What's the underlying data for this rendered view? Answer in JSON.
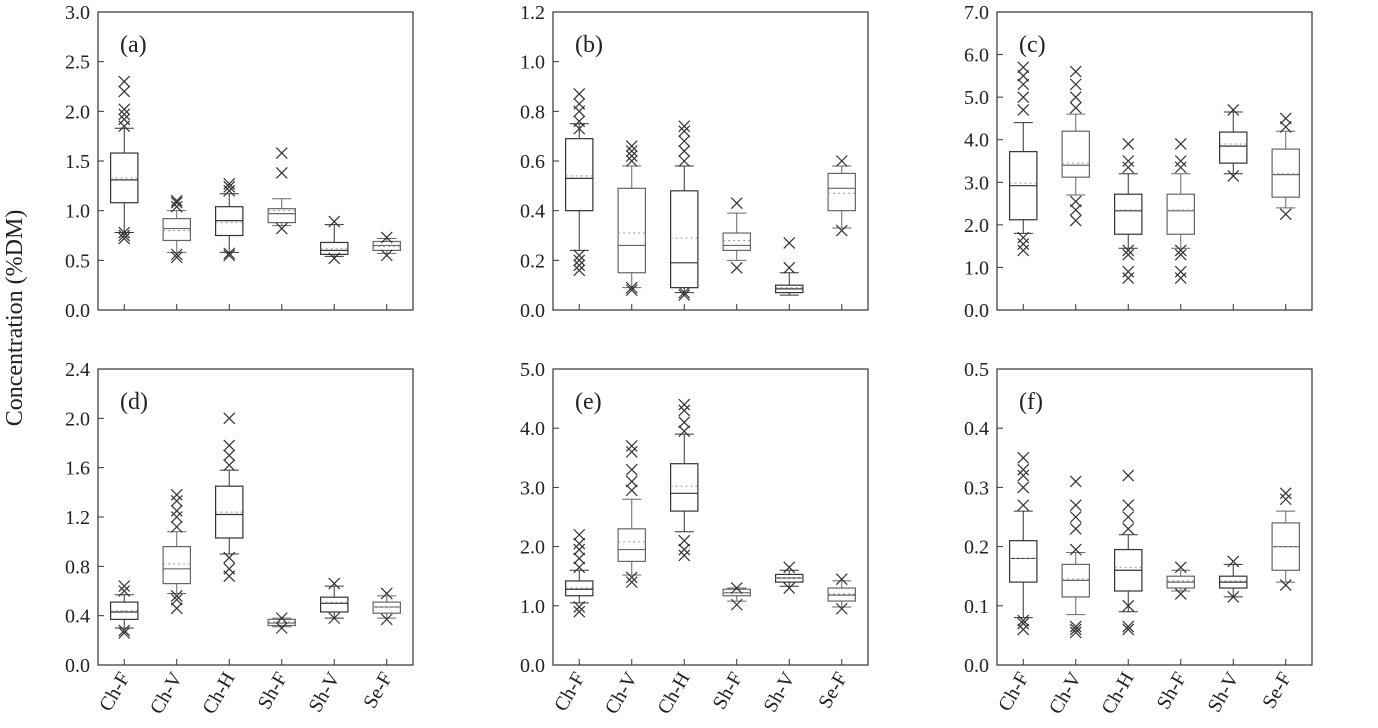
{
  "figure": {
    "ylabel": "Concentration (%DM)",
    "categories": [
      "Ch-F",
      "Ch-V",
      "Ch-H",
      "Sh-F",
      "Sh-V",
      "Se-F"
    ]
  },
  "chart_data": [
    {
      "type": "box",
      "panel_label": "(a)",
      "ylim": [
        0,
        3.0
      ],
      "yticks": [
        "0.0",
        "0.5",
        "1.0",
        "1.5",
        "2.0",
        "2.5",
        "3.0"
      ],
      "tick_values": [
        0,
        0.5,
        1.0,
        1.5,
        2.0,
        2.5,
        3.0
      ],
      "categories": [
        "Ch-F",
        "Ch-V",
        "Ch-H",
        "Sh-F",
        "Sh-V",
        "Se-F"
      ],
      "boxes": [
        {
          "q1": 1.08,
          "median": 1.31,
          "q3": 1.58,
          "mean": 1.33,
          "whisker_low": 0.78,
          "whisker_high": 1.83,
          "outliers": [
            0.72,
            0.75,
            0.78,
            1.85,
            1.92,
            1.97,
            2.02,
            2.2,
            2.3
          ]
        },
        {
          "q1": 0.7,
          "median": 0.82,
          "q3": 0.92,
          "mean": 0.8,
          "whisker_low": 0.58,
          "whisker_high": 1.0,
          "outliers": [
            0.53,
            0.56,
            1.04,
            1.08,
            1.1
          ]
        },
        {
          "q1": 0.75,
          "median": 0.9,
          "q3": 1.04,
          "mean": 0.88,
          "whisker_low": 0.58,
          "whisker_high": 1.17,
          "outliers": [
            0.55,
            0.57,
            1.2,
            1.24,
            1.27
          ]
        },
        {
          "q1": 0.88,
          "median": 0.97,
          "q3": 1.02,
          "mean": 1.0,
          "whisker_low": 0.85,
          "whisker_high": 1.12,
          "outliers": [
            0.82,
            1.38,
            1.58
          ]
        },
        {
          "q1": 0.56,
          "median": 0.6,
          "q3": 0.68,
          "mean": 0.62,
          "whisker_low": 0.54,
          "whisker_high": 0.86,
          "outliers": [
            0.52,
            0.89
          ]
        },
        {
          "q1": 0.6,
          "median": 0.65,
          "q3": 0.69,
          "mean": 0.64,
          "whisker_low": 0.57,
          "whisker_high": 0.72,
          "outliers": [
            0.55,
            0.73
          ]
        }
      ]
    },
    {
      "type": "box",
      "panel_label": "(b)",
      "ylim": [
        0,
        1.2
      ],
      "yticks": [
        "0.0",
        "0.2",
        "0.4",
        "0.6",
        "0.8",
        "1.0",
        "1.2"
      ],
      "tick_values": [
        0,
        0.2,
        0.4,
        0.6,
        0.8,
        1.0,
        1.2
      ],
      "categories": [
        "Ch-F",
        "Ch-V",
        "Ch-H",
        "Sh-F",
        "Sh-V",
        "Se-F"
      ],
      "boxes": [
        {
          "q1": 0.4,
          "median": 0.53,
          "q3": 0.69,
          "mean": 0.54,
          "whisker_low": 0.24,
          "whisker_high": 0.75,
          "outliers": [
            0.16,
            0.18,
            0.2,
            0.22,
            0.73,
            0.76,
            0.8,
            0.83,
            0.87
          ]
        },
        {
          "q1": 0.15,
          "median": 0.26,
          "q3": 0.49,
          "mean": 0.31,
          "whisker_low": 0.09,
          "whisker_high": 0.58,
          "outliers": [
            0.08,
            0.09,
            0.6,
            0.62,
            0.64,
            0.66
          ]
        },
        {
          "q1": 0.09,
          "median": 0.19,
          "q3": 0.48,
          "mean": 0.29,
          "whisker_low": 0.07,
          "whisker_high": 0.58,
          "outliers": [
            0.06,
            0.07,
            0.6,
            0.64,
            0.68,
            0.72,
            0.74
          ]
        },
        {
          "q1": 0.24,
          "median": 0.26,
          "q3": 0.31,
          "mean": 0.28,
          "whisker_low": 0.2,
          "whisker_high": 0.39,
          "outliers": [
            0.17,
            0.43
          ]
        },
        {
          "q1": 0.07,
          "median": 0.085,
          "q3": 0.1,
          "mean": 0.09,
          "whisker_low": 0.06,
          "whisker_high": 0.15,
          "outliers": [
            0.17,
            0.27
          ]
        },
        {
          "q1": 0.4,
          "median": 0.49,
          "q3": 0.55,
          "mean": 0.47,
          "whisker_low": 0.33,
          "whisker_high": 0.58,
          "outliers": [
            0.32,
            0.6
          ]
        }
      ]
    },
    {
      "type": "box",
      "panel_label": "(c)",
      "ylim": [
        0,
        7.0
      ],
      "yticks": [
        "0.0",
        "1.0",
        "2.0",
        "3.0",
        "4.0",
        "5.0",
        "6.0",
        "7.0"
      ],
      "tick_values": [
        0,
        1,
        2,
        3,
        4,
        5,
        6,
        7
      ],
      "categories": [
        "Ch-F",
        "Ch-V",
        "Ch-H",
        "Sh-F",
        "Sh-V",
        "Se-F"
      ],
      "boxes": [
        {
          "q1": 2.12,
          "median": 2.92,
          "q3": 3.72,
          "mean": 2.98,
          "whisker_low": 1.8,
          "whisker_high": 4.4,
          "outliers": [
            1.4,
            1.55,
            1.7,
            4.7,
            5.0,
            5.3,
            5.5,
            5.7
          ]
        },
        {
          "q1": 3.12,
          "median": 3.4,
          "q3": 4.2,
          "mean": 3.45,
          "whisker_low": 2.7,
          "whisker_high": 4.6,
          "outliers": [
            2.1,
            2.35,
            2.55,
            4.75,
            5.0,
            5.3,
            5.6
          ]
        },
        {
          "q1": 1.78,
          "median": 2.33,
          "q3": 2.72,
          "mean": 2.35,
          "whisker_low": 1.45,
          "whisker_high": 3.2,
          "outliers": [
            0.75,
            0.9,
            1.3,
            1.4,
            3.35,
            3.5,
            3.9
          ]
        },
        {
          "q1": 1.78,
          "median": 2.33,
          "q3": 2.72,
          "mean": 2.35,
          "whisker_low": 1.45,
          "whisker_high": 3.2,
          "outliers": [
            0.75,
            0.9,
            1.3,
            1.4,
            3.35,
            3.5,
            3.9
          ]
        },
        {
          "q1": 3.45,
          "median": 3.85,
          "q3": 4.18,
          "mean": 3.9,
          "whisker_low": 3.2,
          "whisker_high": 4.65,
          "outliers": [
            3.15,
            4.7
          ]
        },
        {
          "q1": 2.65,
          "median": 3.18,
          "q3": 3.78,
          "mean": 3.2,
          "whisker_low": 2.4,
          "whisker_high": 4.2,
          "outliers": [
            2.25,
            4.3,
            4.5
          ]
        }
      ]
    },
    {
      "type": "box",
      "panel_label": "(d)",
      "ylim": [
        0,
        2.4
      ],
      "yticks": [
        "0.0",
        "0.4",
        "0.8",
        "1.2",
        "1.6",
        "2.0",
        "2.4"
      ],
      "tick_values": [
        0,
        0.4,
        0.8,
        1.2,
        1.6,
        2.0,
        2.4
      ],
      "categories": [
        "Ch-F",
        "Ch-V",
        "Ch-H",
        "Sh-F",
        "Sh-V",
        "Se-F"
      ],
      "boxes": [
        {
          "q1": 0.37,
          "median": 0.43,
          "q3": 0.51,
          "mean": 0.44,
          "whisker_low": 0.3,
          "whisker_high": 0.57,
          "outliers": [
            0.26,
            0.28,
            0.6,
            0.64
          ]
        },
        {
          "q1": 0.66,
          "median": 0.78,
          "q3": 0.96,
          "mean": 0.82,
          "whisker_low": 0.58,
          "whisker_high": 1.08,
          "outliers": [
            0.46,
            0.53,
            0.56,
            1.12,
            1.2,
            1.25,
            1.33,
            1.38
          ]
        },
        {
          "q1": 1.03,
          "median": 1.22,
          "q3": 1.45,
          "mean": 1.24,
          "whisker_low": 0.9,
          "whisker_high": 1.58,
          "outliers": [
            0.72,
            0.78,
            0.87,
            1.62,
            1.7,
            1.78,
            2.0
          ]
        },
        {
          "q1": 0.32,
          "median": 0.34,
          "q3": 0.37,
          "mean": 0.35,
          "whisker_low": 0.31,
          "whisker_high": 0.38,
          "outliers": [
            0.3,
            0.38
          ]
        },
        {
          "q1": 0.43,
          "median": 0.5,
          "q3": 0.55,
          "mean": 0.51,
          "whisker_low": 0.38,
          "whisker_high": 0.64,
          "outliers": [
            0.38,
            0.66
          ]
        },
        {
          "q1": 0.42,
          "median": 0.47,
          "q3": 0.51,
          "mean": 0.47,
          "whisker_low": 0.38,
          "whisker_high": 0.56,
          "outliers": [
            0.37,
            0.58
          ]
        }
      ]
    },
    {
      "type": "box",
      "panel_label": "(e)",
      "ylim": [
        0,
        5.0
      ],
      "yticks": [
        "0.0",
        "1.0",
        "2.0",
        "3.0",
        "4.0",
        "5.0"
      ],
      "tick_values": [
        0,
        1,
        2,
        3,
        4,
        5
      ],
      "categories": [
        "Ch-F",
        "Ch-V",
        "Ch-H",
        "Sh-F",
        "Sh-V",
        "Se-F"
      ],
      "boxes": [
        {
          "q1": 1.17,
          "median": 1.28,
          "q3": 1.42,
          "mean": 1.3,
          "whisker_low": 1.05,
          "whisker_high": 1.6,
          "outliers": [
            0.9,
            0.98,
            1.65,
            1.8,
            1.95,
            2.05,
            2.2
          ]
        },
        {
          "q1": 1.75,
          "median": 1.95,
          "q3": 2.3,
          "mean": 2.08,
          "whisker_low": 1.52,
          "whisker_high": 2.8,
          "outliers": [
            1.4,
            1.48,
            2.95,
            3.1,
            3.3,
            3.6,
            3.7
          ]
        },
        {
          "q1": 2.6,
          "median": 2.9,
          "q3": 3.4,
          "mean": 3.02,
          "whisker_low": 2.25,
          "whisker_high": 3.9,
          "outliers": [
            1.85,
            1.95,
            2.1,
            3.95,
            4.1,
            4.3,
            4.4
          ]
        },
        {
          "q1": 1.17,
          "median": 1.22,
          "q3": 1.28,
          "mean": 1.22,
          "whisker_low": 1.08,
          "whisker_high": 1.3,
          "outliers": [
            1.02,
            1.3
          ]
        },
        {
          "q1": 1.4,
          "median": 1.47,
          "q3": 1.53,
          "mean": 1.47,
          "whisker_low": 1.33,
          "whisker_high": 1.6,
          "outliers": [
            1.3,
            1.65
          ]
        },
        {
          "q1": 1.08,
          "median": 1.18,
          "q3": 1.3,
          "mean": 1.2,
          "whisker_low": 0.98,
          "whisker_high": 1.42,
          "outliers": [
            0.95,
            1.45
          ]
        }
      ]
    },
    {
      "type": "box",
      "panel_label": "(f)",
      "ylim": [
        0,
        0.5
      ],
      "yticks": [
        "0.0",
        "0.1",
        "0.2",
        "0.3",
        "0.4",
        "0.5"
      ],
      "tick_values": [
        0,
        0.1,
        0.2,
        0.3,
        0.4,
        0.5
      ],
      "categories": [
        "Ch-F",
        "Ch-V",
        "Ch-H",
        "Sh-F",
        "Sh-V",
        "Se-F"
      ],
      "boxes": [
        {
          "q1": 0.14,
          "median": 0.18,
          "q3": 0.21,
          "mean": 0.18,
          "whisker_low": 0.08,
          "whisker_high": 0.26,
          "outliers": [
            0.06,
            0.07,
            0.075,
            0.27,
            0.3,
            0.32,
            0.33,
            0.35
          ]
        },
        {
          "q1": 0.115,
          "median": 0.143,
          "q3": 0.17,
          "mean": 0.145,
          "whisker_low": 0.085,
          "whisker_high": 0.19,
          "outliers": [
            0.055,
            0.06,
            0.065,
            0.195,
            0.23,
            0.25,
            0.27,
            0.31
          ]
        },
        {
          "q1": 0.125,
          "median": 0.16,
          "q3": 0.195,
          "mean": 0.165,
          "whisker_low": 0.09,
          "whisker_high": 0.22,
          "outliers": [
            0.06,
            0.065,
            0.1,
            0.23,
            0.25,
            0.27,
            0.32
          ]
        },
        {
          "q1": 0.13,
          "median": 0.14,
          "q3": 0.15,
          "mean": 0.142,
          "whisker_low": 0.125,
          "whisker_high": 0.16,
          "outliers": [
            0.12,
            0.165
          ]
        },
        {
          "q1": 0.13,
          "median": 0.14,
          "q3": 0.15,
          "mean": 0.142,
          "whisker_low": 0.115,
          "whisker_high": 0.17,
          "outliers": [
            0.115,
            0.175
          ]
        },
        {
          "q1": 0.16,
          "median": 0.2,
          "q3": 0.24,
          "mean": 0.2,
          "whisker_low": 0.14,
          "whisker_high": 0.26,
          "outliers": [
            0.135,
            0.28,
            0.29
          ]
        }
      ]
    }
  ]
}
